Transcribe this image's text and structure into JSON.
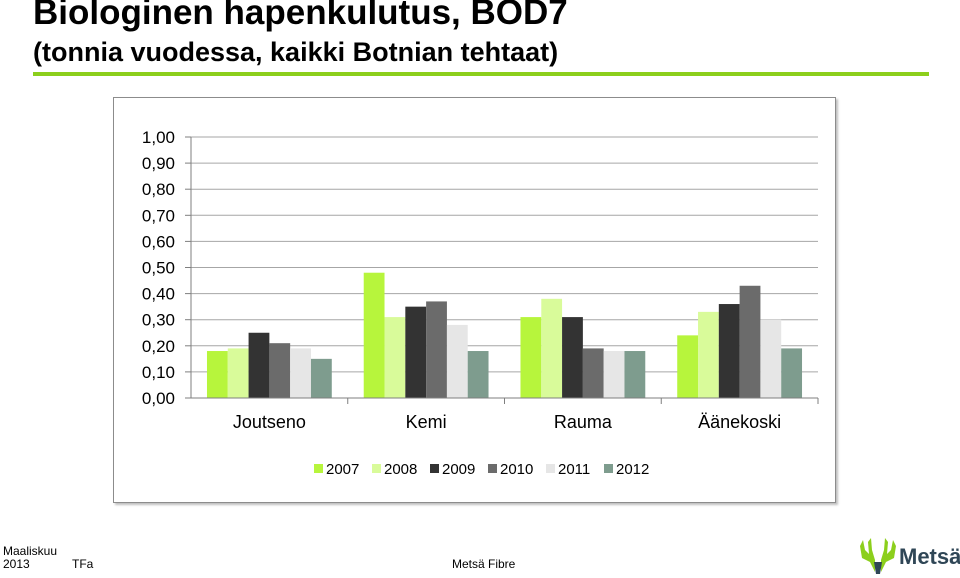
{
  "header": {
    "title_line1": "Biologinen hapenkulutus, BOD7",
    "title_line2": "(tonnia vuodessa, kaikki Botnian tehtaat)",
    "accent_color": "#8ccf1c"
  },
  "chart_data": {
    "type": "bar",
    "categories": [
      "Joutseno",
      "Kemi",
      "Rauma",
      "Äänekoski"
    ],
    "series": [
      {
        "name": "2007",
        "color": "#b7f53c",
        "values": [
          0.18,
          0.48,
          0.31,
          0.24
        ]
      },
      {
        "name": "2008",
        "color": "#d9fb9a",
        "values": [
          0.19,
          0.31,
          0.38,
          0.33
        ]
      },
      {
        "name": "2009",
        "color": "#333333",
        "values": [
          0.25,
          0.35,
          0.31,
          0.36
        ]
      },
      {
        "name": "2010",
        "color": "#6b6b6b",
        "values": [
          0.21,
          0.37,
          0.19,
          0.43
        ]
      },
      {
        "name": "2011",
        "color": "#e6e6e6",
        "values": [
          0.19,
          0.28,
          0.18,
          0.3
        ]
      },
      {
        "name": "2012",
        "color": "#7e9c8e",
        "values": [
          0.15,
          0.18,
          0.18,
          0.19
        ]
      }
    ],
    "yticks": [
      "0,00",
      "0,10",
      "0,20",
      "0,30",
      "0,40",
      "0,50",
      "0,60",
      "0,70",
      "0,80",
      "0,90",
      "1,00"
    ],
    "ylim": [
      0,
      1.0
    ],
    "grid": true,
    "legend_position": "bottom"
  },
  "footer": {
    "month": "Maaliskuu",
    "year": "2013",
    "author": "TFa",
    "company": "Metsä Fibre"
  },
  "logo": {
    "text": "Metsä",
    "icon": "moose-antlers-icon",
    "antler_color": "#8ccf1c",
    "text_color": "#2f4656"
  }
}
